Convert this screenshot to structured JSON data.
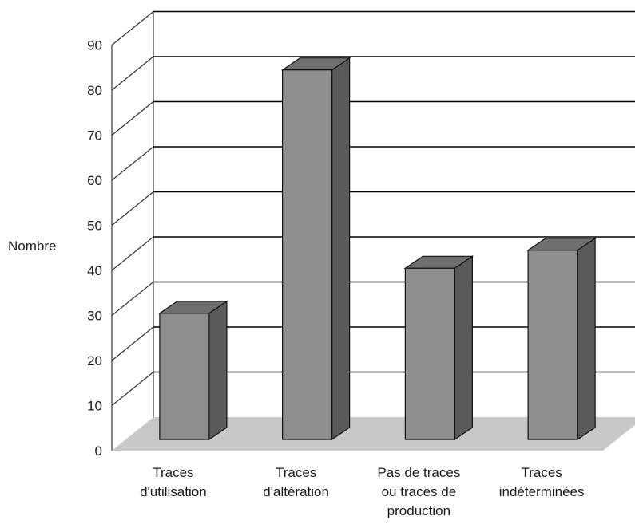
{
  "chart_data": {
    "type": "bar",
    "style": "3d-column",
    "ylabel": "Nombre",
    "xlabel": "",
    "title": "",
    "ylim": [
      0,
      90
    ],
    "yticks": [
      0,
      10,
      20,
      30,
      40,
      50,
      60,
      70,
      80,
      90
    ],
    "grid": true,
    "categories": [
      [
        "Traces",
        "d'utilisation"
      ],
      [
        "Traces",
        "d'altération"
      ],
      [
        "Pas de traces",
        "ou traces de",
        "production"
      ],
      [
        "Traces",
        "indéterminées"
      ]
    ],
    "values": [
      28,
      82,
      38,
      42
    ],
    "colors": {
      "bar_front": "#8e8e8e",
      "bar_side": "#5a5a5a",
      "bar_top": "#6f6f6f",
      "floor": "#c8c8c8"
    }
  }
}
